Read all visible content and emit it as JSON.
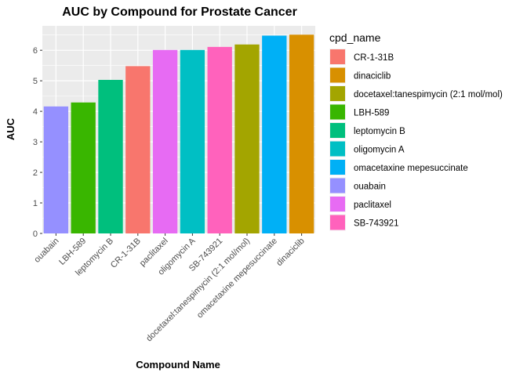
{
  "chart_data": {
    "type": "bar",
    "title": "AUC by Compound for Prostate Cancer",
    "xlabel": "Compound Name",
    "ylabel": "AUC",
    "ylim": [
      0,
      6.8
    ],
    "yticks": [
      0,
      1,
      2,
      3,
      4,
      5,
      6
    ],
    "grid": true,
    "legend_position": "right",
    "legend_title": "cpd_name",
    "categories": [
      "ouabain",
      "LBH-589",
      "leptomycin B",
      "CR-1-31B",
      "paclitaxel",
      "oligomycin A",
      "SB-743921",
      "docetaxel:tanespimycin (2:1 mol/mol)",
      "omacetaxine mepesuccinate",
      "dinaciclib"
    ],
    "values": [
      4.16,
      4.29,
      5.03,
      5.48,
      6.01,
      6.01,
      6.11,
      6.19,
      6.48,
      6.51
    ],
    "bar_colors": [
      "#9590FF",
      "#39B600",
      "#00BF7D",
      "#F8766D",
      "#E76BF3",
      "#00BFC4",
      "#FF62BC",
      "#A3A500",
      "#00B0F6",
      "#D89000"
    ],
    "legend": [
      {
        "label": "CR-1-31B",
        "color": "#F8766D"
      },
      {
        "label": "dinaciclib",
        "color": "#D89000"
      },
      {
        "label": "docetaxel:tanespimycin (2:1 mol/mol)",
        "color": "#A3A500"
      },
      {
        "label": "LBH-589",
        "color": "#39B600"
      },
      {
        "label": "leptomycin B",
        "color": "#00BF7D"
      },
      {
        "label": "oligomycin A",
        "color": "#00BFC4"
      },
      {
        "label": "omacetaxine mepesuccinate",
        "color": "#00B0F6"
      },
      {
        "label": "ouabain",
        "color": "#9590FF"
      },
      {
        "label": "paclitaxel",
        "color": "#E76BF3"
      },
      {
        "label": "SB-743921",
        "color": "#FF62BC"
      }
    ],
    "panel_background": "#EBEBEB",
    "grid_color": "#FFFFFF"
  }
}
